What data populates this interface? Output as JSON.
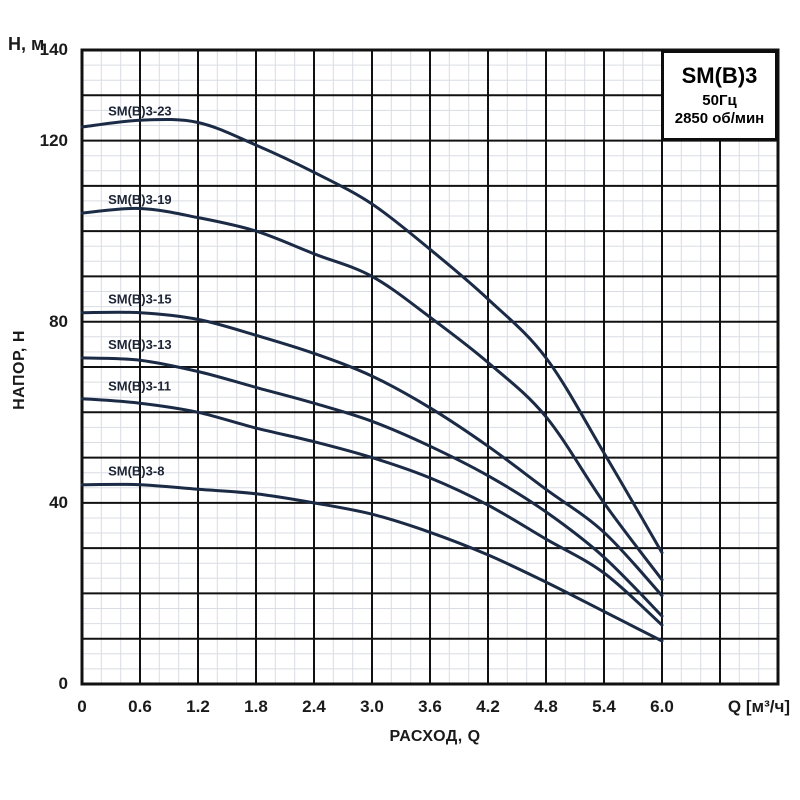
{
  "title_box": {
    "model": "SM(B)3",
    "frequency": "50Гц",
    "speed": "2850 об/мин"
  },
  "axes": {
    "y_unit": "H, м",
    "ylabel": "НАПОР, Н",
    "xlabel": "РАСХОД, Q",
    "x_unit": "Q [м³/ч]"
  },
  "colors": {
    "curve": "#1b2a45",
    "major_grid": "#111111",
    "minor_grid": "#d9dde3",
    "text": "#1a1a1a"
  },
  "chart_data": {
    "type": "line",
    "title": "SM(B)3 50Гц 2850 об/мин",
    "xlabel": "РАСХОД, Q",
    "ylabel": "НАПОР, Н",
    "x_axis_unit": "Q [м³/ч]",
    "y_axis_unit": "H, м",
    "xlim": [
      0,
      7.2
    ],
    "ylim": [
      0,
      140
    ],
    "x_major_step": 0.6,
    "x_minor_step": 0.2,
    "y_major_step": 10,
    "y_minor_divisions": 3,
    "grid": true,
    "legend_position": "labels-above-curves",
    "x": [
      0,
      0.6,
      1.2,
      1.8,
      2.4,
      3.0,
      3.6,
      4.2,
      4.8,
      5.4,
      6.0
    ],
    "x_ticks": [
      {
        "v": 0,
        "label": "0"
      },
      {
        "v": 0.6,
        "label": "0.6"
      },
      {
        "v": 1.2,
        "label": "1.2"
      },
      {
        "v": 1.8,
        "label": "1.8"
      },
      {
        "v": 2.4,
        "label": "2.4"
      },
      {
        "v": 3.0,
        "label": "3.0"
      },
      {
        "v": 3.6,
        "label": "3.6"
      },
      {
        "v": 4.2,
        "label": "4.2"
      },
      {
        "v": 4.8,
        "label": "4.8"
      },
      {
        "v": 5.4,
        "label": "5.4"
      },
      {
        "v": 6.0,
        "label": "6.0"
      }
    ],
    "y_ticks": [
      {
        "v": 140,
        "label": "140"
      },
      {
        "v": 120,
        "label": "120"
      },
      {
        "v": 80,
        "label": "80"
      },
      {
        "v": 40,
        "label": "40"
      },
      {
        "v": 0,
        "label": "0"
      }
    ],
    "series": [
      {
        "name": "SM(B)3-23",
        "label_q": 0.27,
        "label_h": 125.5,
        "values": [
          123,
          124.5,
          124,
          119,
          113,
          106,
          96,
          85,
          72,
          51,
          29
        ]
      },
      {
        "name": "SM(B)3-19",
        "label_q": 0.27,
        "label_h": 106,
        "values": [
          104,
          105,
          103,
          100,
          95,
          90,
          81,
          71,
          59,
          40,
          23
        ]
      },
      {
        "name": "SM(B)3-15",
        "label_q": 0.27,
        "label_h": 84,
        "values": [
          82,
          82,
          80.5,
          77,
          73,
          68,
          61,
          52.5,
          43,
          33.5,
          19.5
        ]
      },
      {
        "name": "SM(B)3-13",
        "label_q": 0.27,
        "label_h": 74,
        "values": [
          72,
          71.5,
          69,
          65.5,
          62,
          58,
          52.5,
          46,
          38,
          28,
          15
        ]
      },
      {
        "name": "SM(B)3-11",
        "label_q": 0.27,
        "label_h": 64.8,
        "values": [
          63,
          62,
          60,
          56.5,
          53.5,
          50,
          45.5,
          39.5,
          32,
          24.5,
          13
        ]
      },
      {
        "name": "SM(B)3-8",
        "label_q": 0.27,
        "label_h": 46,
        "values": [
          44,
          44,
          43,
          42,
          40,
          37.5,
          33.5,
          28.5,
          22.5,
          16,
          9.5
        ]
      }
    ]
  }
}
